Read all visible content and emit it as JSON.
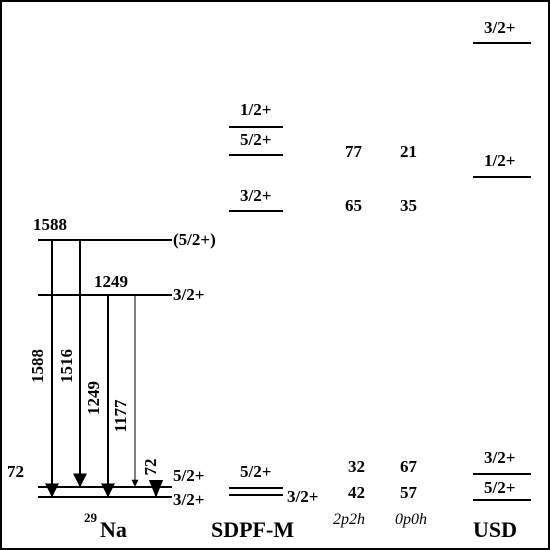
{
  "nucleus": {
    "mass": "29",
    "symbol": "Na"
  },
  "columns": {
    "sdpfm": "SDPF-M",
    "usd": "USD",
    "config_2p2h": "2p2h",
    "config_0p0h": "0p0h"
  },
  "experiment": {
    "level_1588_energy": "1588",
    "level_1588_spin": "(5/2+)",
    "level_1249_energy": "1249",
    "level_1249_spin": "3/2+",
    "level_72_energy": "72",
    "level_72_spin": "5/2+",
    "ground_spin": "3/2+",
    "gamma_labels": [
      "1588",
      "1516",
      "1249",
      "1177",
      "72"
    ]
  },
  "sdpfm_levels": [
    "1/2+",
    "5/2+",
    "3/2+",
    "5/2+",
    "3/2+"
  ],
  "usd_levels": [
    "3/2+",
    "1/2+",
    "3/2+",
    "5/2+"
  ],
  "percentages": [
    {
      "p2h": "77",
      "p0h": "21"
    },
    {
      "p2h": "65",
      "p0h": "35"
    },
    {
      "p2h": "32",
      "p0h": "67"
    },
    {
      "p2h": "42",
      "p0h": "57"
    }
  ],
  "colors": {
    "line": "#000000",
    "background": "#ffffff"
  }
}
